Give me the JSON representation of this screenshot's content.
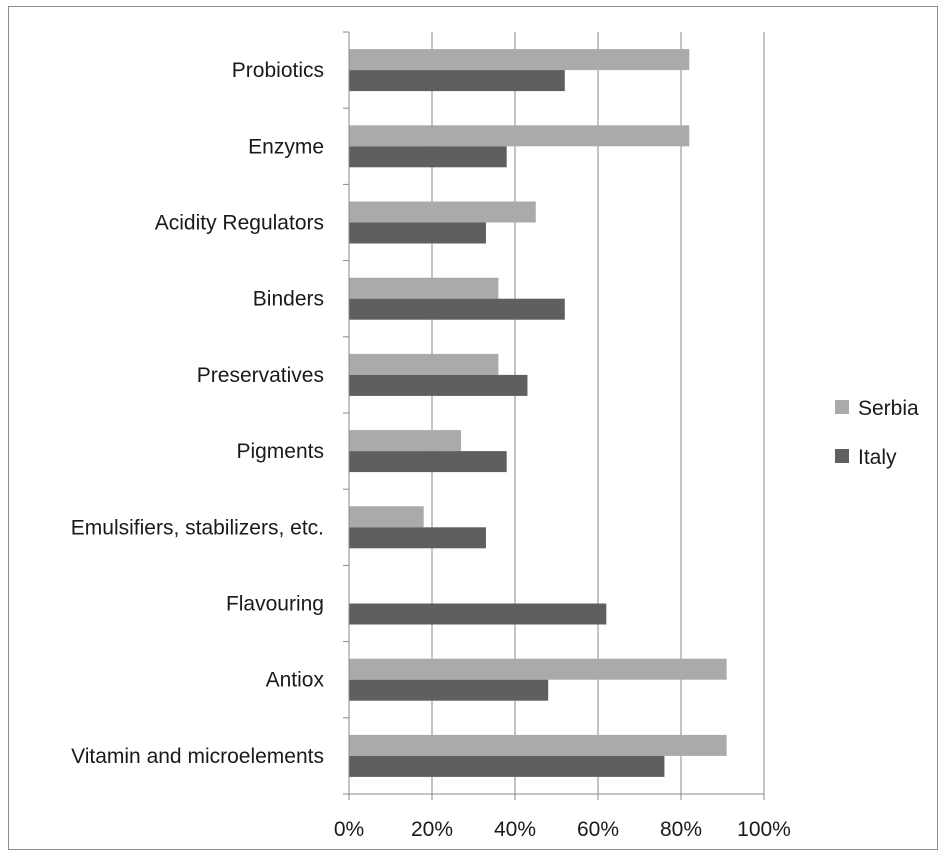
{
  "chart_data": {
    "type": "bar",
    "orientation": "horizontal",
    "categories": [
      "Probiotics",
      "Enzyme",
      "Acidity Regulators",
      "Binders",
      "Preservatives",
      "Pigments",
      "Emulsifiers, stabilizers, etc.",
      "Flavouring",
      "Antiox",
      "Vitamin and microelements"
    ],
    "series": [
      {
        "name": "Serbia",
        "color": "#aaaaaa",
        "values": [
          82,
          82,
          45,
          36,
          36,
          27,
          18,
          0,
          91,
          91
        ]
      },
      {
        "name": "Italy",
        "color": "#5f5f5f",
        "values": [
          52,
          38,
          33,
          52,
          43,
          38,
          33,
          62,
          48,
          76
        ]
      }
    ],
    "xlim": [
      0,
      100
    ],
    "xticks": [
      "0%",
      "20%",
      "40%",
      "60%",
      "80%",
      "100%"
    ],
    "grid": "vertical",
    "legend": "right"
  }
}
